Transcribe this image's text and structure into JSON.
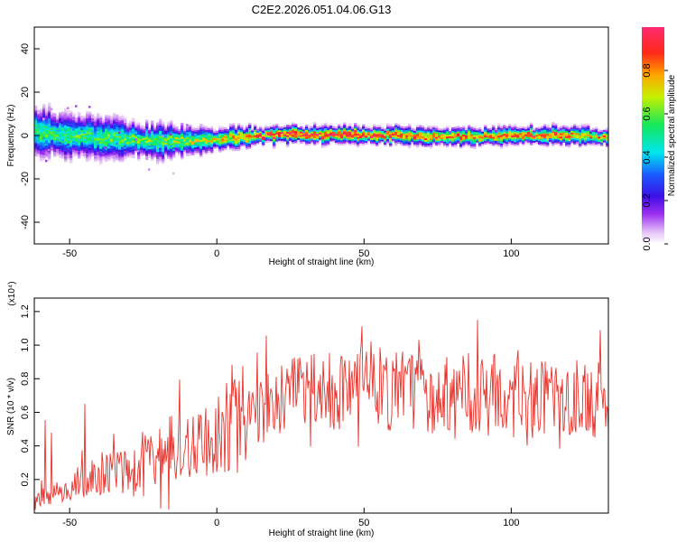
{
  "title": "C2E2.2026.051.04.06.G13",
  "chart_data": [
    {
      "type": "heatmap",
      "xlabel": "Height of straight line (km)",
      "ylabel": "Frequency (Hz)",
      "xlim": [
        -62,
        133
      ],
      "ylim": [
        -50,
        50
      ],
      "x_ticks": [
        -50,
        0,
        50,
        100
      ],
      "y_ticks": [
        -40,
        -20,
        0,
        20,
        40
      ],
      "colorbar": {
        "label": "Normalized spectral amplitude",
        "range": [
          0,
          1
        ],
        "ticks": [
          "0.0",
          "0.2",
          "0.4",
          "0.6",
          "0.8"
        ]
      },
      "band": [
        {
          "x": -62,
          "center": 1,
          "halfwidth": 9,
          "peak": 0.55
        },
        {
          "x": -45,
          "center": -1,
          "halfwidth": 7,
          "peak": 0.55
        },
        {
          "x": -20,
          "center": -3,
          "halfwidth": 6,
          "peak": 0.6
        },
        {
          "x": 0,
          "center": -2,
          "halfwidth": 4,
          "peak": 0.7
        },
        {
          "x": 20,
          "center": 0,
          "halfwidth": 3,
          "peak": 0.95
        },
        {
          "x": 50,
          "center": 0,
          "halfwidth": 3,
          "peak": 0.95
        },
        {
          "x": 80,
          "center": -1,
          "halfwidth": 3,
          "peak": 0.8
        },
        {
          "x": 110,
          "center": 0,
          "halfwidth": 3,
          "peak": 0.85
        },
        {
          "x": 133,
          "center": -1,
          "halfwidth": 3,
          "peak": 0.75
        }
      ]
    },
    {
      "type": "line",
      "xlabel": "Height of straight line (km)",
      "ylabel": "SNR (10 * v/v)",
      "y_multiplier": "(x10⁴)",
      "xlim": [
        -62,
        133
      ],
      "ylim": [
        0,
        1.28
      ],
      "x_ticks": [
        -50,
        0,
        50,
        100
      ],
      "y_ticks": [
        0.2,
        0.4,
        0.6,
        0.8,
        1.0,
        1.2
      ],
      "color": "#e8322b",
      "series": [
        {
          "x": [
            -62,
            -55,
            -50,
            -45,
            -40,
            -35,
            -30,
            -25,
            -20,
            -15,
            -10,
            -5,
            0,
            5,
            10,
            15,
            20,
            25,
            30,
            35,
            40,
            45,
            50,
            55,
            60,
            65,
            70,
            75,
            80,
            85,
            90,
            95,
            100,
            105,
            110,
            115,
            120,
            125,
            130,
            133
          ],
          "y": [
            0.08,
            0.12,
            0.15,
            0.2,
            0.24,
            0.25,
            0.26,
            0.3,
            0.32,
            0.38,
            0.42,
            0.45,
            0.5,
            0.52,
            0.58,
            0.63,
            0.66,
            0.69,
            0.7,
            0.71,
            0.72,
            0.73,
            0.75,
            0.74,
            0.72,
            0.71,
            0.72,
            0.73,
            0.72,
            0.71,
            0.7,
            0.7,
            0.69,
            0.68,
            0.68,
            0.68,
            0.68,
            0.67,
            0.68,
            0.68
          ]
        }
      ]
    }
  ]
}
